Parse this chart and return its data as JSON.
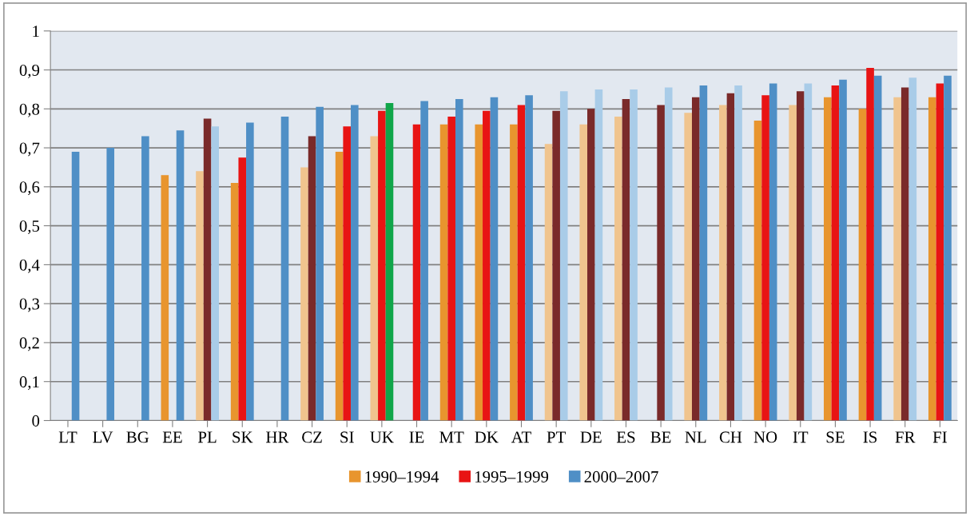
{
  "chart_data": {
    "type": "bar",
    "categories": [
      "LT",
      "LV",
      "BG",
      "EE",
      "PL",
      "SK",
      "HR",
      "CZ",
      "SI",
      "UK",
      "IE",
      "MT",
      "DK",
      "AT",
      "PT",
      "DE",
      "ES",
      "BE",
      "NL",
      "CH",
      "NO",
      "IT",
      "SE",
      "IS",
      "FR",
      "FI"
    ],
    "series": [
      {
        "name": "1990–1994",
        "color": "#e8952e",
        "values": [
          null,
          null,
          null,
          0.63,
          0.64,
          0.61,
          null,
          0.65,
          0.69,
          0.73,
          null,
          0.76,
          0.76,
          0.76,
          0.71,
          0.76,
          0.78,
          null,
          0.79,
          0.81,
          0.77,
          0.81,
          0.83,
          0.8,
          0.83,
          0.83
        ],
        "colors": [
          "#e8952e",
          "#e8952e",
          "#e8952e",
          "#e8952e",
          "#f0c48e",
          "#e8952e",
          "#e8952e",
          "#f0c48e",
          "#e8952e",
          "#f0c48e",
          "#e8952e",
          "#e8952e",
          "#e8952e",
          "#e8952e",
          "#f0c48e",
          "#f0c48e",
          "#f0c48e",
          "#f0c48e",
          "#f0c48e",
          "#f0c48e",
          "#e8952e",
          "#f0c48e",
          "#e8952e",
          "#e8952e",
          "#f0c48e",
          "#e8952e"
        ]
      },
      {
        "name": "1995–1999",
        "color": "#e81414",
        "values": [
          null,
          null,
          null,
          null,
          0.775,
          0.675,
          null,
          0.73,
          0.755,
          0.795,
          0.76,
          0.78,
          0.795,
          0.81,
          0.795,
          0.8,
          0.825,
          0.81,
          0.83,
          0.84,
          0.835,
          0.845,
          0.86,
          0.905,
          0.855,
          0.865
        ],
        "colors": [
          "#e81414",
          "#e81414",
          "#e81414",
          "#e81414",
          "#7a2a2a",
          "#e81414",
          "#e81414",
          "#7a2a2a",
          "#e81414",
          "#e81414",
          "#e81414",
          "#e81414",
          "#e81414",
          "#e81414",
          "#7a2a2a",
          "#7a2a2a",
          "#7a2a2a",
          "#7a2a2a",
          "#7a2a2a",
          "#7a2a2a",
          "#e81414",
          "#7a2a2a",
          "#e81414",
          "#e81414",
          "#7a2a2a",
          "#e81414"
        ]
      },
      {
        "name": "2000–2007",
        "color": "#4f8fc6",
        "values": [
          0.69,
          0.7,
          0.73,
          0.745,
          0.755,
          0.765,
          0.78,
          0.805,
          0.81,
          0.815,
          0.82,
          0.825,
          0.83,
          0.835,
          0.845,
          0.85,
          0.85,
          0.855,
          0.86,
          0.86,
          0.865,
          0.865,
          0.875,
          0.885,
          0.88,
          0.885
        ],
        "colors": [
          "#4f8fc6",
          "#4f8fc6",
          "#4f8fc6",
          "#4f8fc6",
          "#a9cce8",
          "#4f8fc6",
          "#4f8fc6",
          "#4f8fc6",
          "#4f8fc6",
          "#10a64a",
          "#4f8fc6",
          "#4f8fc6",
          "#4f8fc6",
          "#4f8fc6",
          "#a9cce8",
          "#a9cce8",
          "#a9cce8",
          "#a9cce8",
          "#4f8fc6",
          "#a9cce8",
          "#4f8fc6",
          "#a9cce8",
          "#4f8fc6",
          "#4f8fc6",
          "#a9cce8",
          "#4f8fc6"
        ]
      }
    ],
    "ylim": [
      0,
      1
    ],
    "yticks": [
      0,
      {
        "value": 0.1,
        "label": "0,1"
      },
      {
        "value": 0.2,
        "label": "0,2"
      },
      {
        "value": 0.3,
        "label": "0,3"
      },
      {
        "value": 0.4,
        "label": "0,4"
      },
      {
        "value": 0.5,
        "label": "0,5"
      },
      {
        "value": 0.6,
        "label": "0,6"
      },
      {
        "value": 0.7,
        "label": "0,7"
      },
      {
        "value": 0.8,
        "label": "0,8"
      },
      {
        "value": 0.9,
        "label": "0,9"
      },
      1
    ],
    "grid": "y",
    "legend": "bottom"
  }
}
